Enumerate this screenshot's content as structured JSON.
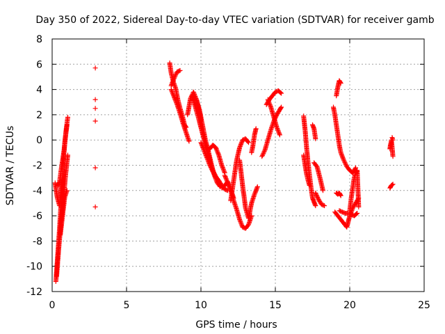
{
  "chart_data": {
    "type": "scatter",
    "title": "Day 350 of 2022, Sidereal Day-to-day VTEC variation (SDTVAR) for receiver gamb",
    "xlabel": "GPS time / hours",
    "ylabel": "SDTVAR / TECUs",
    "xlim": [
      0,
      25
    ],
    "ylim": [
      -12,
      8
    ],
    "xticks": [
      0,
      5,
      10,
      15,
      20,
      25
    ],
    "yticks": [
      -12,
      -10,
      -8,
      -6,
      -4,
      -2,
      0,
      2,
      4,
      6,
      8
    ],
    "grid": true,
    "marker": "+",
    "color": "#ff0000",
    "series": [
      {
        "name": "SDTVAR",
        "segments": [
          {
            "x": [
              0.25,
              0.35,
              0.45,
              0.55,
              0.65,
              0.75,
              0.85,
              0.95,
              1.05
            ],
            "y": [
              -11.2,
              -9.5,
              -7.8,
              -6.0,
              -3.8,
              -1.8,
              -0.2,
              0.9,
              1.8
            ]
          },
          {
            "x": [
              0.3,
              0.45,
              0.6,
              0.75,
              0.9,
              1.05
            ],
            "y": [
              -10.8,
              -8.5,
              -6.5,
              -4.8,
              -2.8,
              -1.2
            ]
          },
          {
            "x": [
              0.2,
              0.35,
              0.5,
              0.65
            ],
            "y": [
              -3.4,
              -4.6,
              -5.2,
              -3.2
            ]
          },
          {
            "x": [
              0.55,
              0.7,
              0.85,
              1.0
            ],
            "y": [
              -7.5,
              -6.0,
              -4.5,
              -4.0
            ]
          },
          {
            "x": [
              0.4,
              0.5,
              0.6,
              0.7,
              0.8,
              0.9,
              1.0
            ],
            "y": [
              -3.6,
              -3.3,
              -2.4,
              -1.6,
              -0.8,
              0.3,
              1.2
            ]
          },
          {
            "x": [
              2.9,
              2.9,
              2.9,
              2.9,
              2.9,
              2.9
            ],
            "y": [
              5.7,
              3.2,
              2.5,
              1.5,
              -2.2,
              -5.3
            ]
          },
          {
            "x": [
              7.9,
              8.0,
              8.15,
              8.3,
              8.45,
              8.6,
              8.75,
              8.9,
              9.0
            ],
            "y": [
              6.1,
              5.3,
              4.6,
              4.1,
              3.2,
              2.5,
              1.9,
              1.2,
              1.0
            ]
          },
          {
            "x": [
              8.0,
              8.2,
              8.4,
              8.6
            ],
            "y": [
              4.3,
              4.9,
              5.4,
              5.5
            ]
          },
          {
            "x": [
              8.0,
              8.2,
              8.4,
              8.6,
              8.8,
              9.0,
              9.2
            ],
            "y": [
              4.0,
              3.4,
              2.8,
              2.1,
              1.3,
              0.6,
              -0.1
            ]
          },
          {
            "x": [
              9.1,
              9.3,
              9.5,
              9.7,
              9.9,
              10.0
            ],
            "y": [
              2.0,
              3.3,
              3.8,
              3.2,
              2.2,
              1.5
            ]
          },
          {
            "x": [
              9.4,
              9.6,
              9.8,
              10.0,
              10.2,
              10.4,
              10.6,
              10.8,
              11.0,
              11.2,
              11.4,
              11.6,
              11.8
            ],
            "y": [
              3.5,
              2.7,
              1.9,
              1.0,
              0.1,
              -0.8,
              -1.7,
              -2.4,
              -2.9,
              -3.3,
              -3.6,
              -3.9,
              -4.0
            ]
          },
          {
            "x": [
              9.7,
              9.9,
              10.1,
              10.3,
              10.5,
              10.7,
              10.9,
              11.1,
              11.3
            ],
            "y": [
              3.2,
              2.4,
              1.2,
              0.0,
              -0.9,
              -1.9,
              -2.8,
              -3.4,
              -3.7
            ]
          },
          {
            "x": [
              10.6,
              10.8,
              11.0,
              11.2,
              11.4,
              11.6
            ],
            "y": [
              -0.7,
              -0.4,
              -0.6,
              -1.2,
              -2.0,
              -2.6
            ]
          },
          {
            "x": [
              10.0,
              10.2,
              10.4,
              10.6,
              10.8,
              11.0,
              11.2,
              11.4
            ],
            "y": [
              -0.2,
              -0.8,
              -1.4,
              -2.0,
              -2.5,
              -2.9,
              -3.2,
              -3.6
            ]
          },
          {
            "x": [
              11.6,
              11.8,
              12.0,
              12.2,
              12.4,
              12.6,
              12.8,
              13.0,
              13.2,
              13.4
            ],
            "y": [
              -2.8,
              -3.4,
              -4.0,
              -4.8,
              -5.5,
              -6.3,
              -6.9,
              -7.0,
              -6.7,
              -6.0
            ]
          },
          {
            "x": [
              11.4,
              11.6,
              11.8,
              12.0,
              12.2
            ],
            "y": [
              -3.8,
              -3.6,
              -3.3,
              -3.9,
              -4.6
            ]
          },
          {
            "x": [
              12.0,
              12.2,
              12.4,
              12.6,
              12.8,
              13.0,
              13.2
            ],
            "y": [
              -4.8,
              -3.2,
              -1.6,
              -0.6,
              0.0,
              0.1,
              -0.2
            ]
          },
          {
            "x": [
              12.6,
              12.8,
              13.0,
              13.2,
              13.4,
              13.6,
              13.8
            ],
            "y": [
              -1.6,
              -3.6,
              -5.4,
              -6.2,
              -5.0,
              -4.3,
              -3.7
            ]
          },
          {
            "x": [
              13.4,
              13.5,
              13.6,
              13.7
            ],
            "y": [
              -1.0,
              -0.4,
              0.4,
              0.9
            ]
          },
          {
            "x": [
              14.1,
              14.3,
              14.5,
              14.7,
              14.9,
              15.1,
              15.3,
              15.4
            ],
            "y": [
              -1.3,
              -0.8,
              0.0,
              0.8,
              1.5,
              2.0,
              2.4,
              2.6
            ]
          },
          {
            "x": [
              14.4,
              14.6,
              14.8,
              15.0,
              15.2,
              15.4
            ],
            "y": [
              2.8,
              3.2,
              3.5,
              3.8,
              3.9,
              3.7
            ]
          },
          {
            "x": [
              14.5,
              14.7,
              14.9,
              15.1,
              15.3
            ],
            "y": [
              3.2,
              2.6,
              1.8,
              1.0,
              0.4
            ]
          },
          {
            "x": [
              16.9,
              17.0,
              17.1,
              17.2,
              17.3,
              17.4,
              17.5,
              17.6,
              17.7
            ],
            "y": [
              1.9,
              0.8,
              -0.6,
              -1.8,
              -2.8,
              -3.8,
              -4.6,
              -4.9,
              -5.2
            ]
          },
          {
            "x": [
              16.9,
              17.0,
              17.1,
              17.2,
              17.3
            ],
            "y": [
              -1.2,
              -2.0,
              -2.7,
              -3.2,
              -3.6
            ]
          },
          {
            "x": [
              17.5,
              17.6,
              17.7
            ],
            "y": [
              1.2,
              0.9,
              0.1
            ]
          },
          {
            "x": [
              17.6,
              17.8,
              18.0,
              18.2
            ],
            "y": [
              -1.8,
              -2.1,
              -3.0,
              -4.0
            ]
          },
          {
            "x": [
              17.7,
              17.9,
              18.1,
              18.3
            ],
            "y": [
              -4.2,
              -4.7,
              -5.1,
              -5.2
            ]
          },
          {
            "x": [
              18.9,
              19.0,
              19.1,
              19.2,
              19.3,
              19.4,
              19.6,
              19.8,
              20.0,
              20.2,
              20.4
            ],
            "y": [
              2.6,
              2.0,
              1.2,
              0.4,
              -0.4,
              -1.0,
              -1.6,
              -2.1,
              -2.4,
              -2.6,
              -2.2
            ]
          },
          {
            "x": [
              19.1,
              19.2,
              19.3,
              19.4
            ],
            "y": [
              3.5,
              4.2,
              4.7,
              4.5
            ]
          },
          {
            "x": [
              19.1,
              19.2,
              19.3,
              19.4
            ],
            "y": [
              -4.2,
              -4.3,
              -4.2,
              -4.4
            ]
          },
          {
            "x": [
              19.0,
              19.2,
              19.4,
              19.6,
              19.8,
              20.0,
              20.2,
              20.4,
              20.6
            ],
            "y": [
              -5.7,
              -6.0,
              -6.3,
              -6.6,
              -6.9,
              -6.0,
              -5.4,
              -5.0,
              -4.6
            ]
          },
          {
            "x": [
              19.3,
              19.5,
              19.7,
              19.9
            ],
            "y": [
              -5.6,
              -5.7,
              -5.8,
              -5.8
            ]
          },
          {
            "x": [
              20.0,
              20.1,
              20.2,
              20.3,
              20.4,
              20.5,
              20.6
            ],
            "y": [
              -5.6,
              -4.6,
              -3.8,
              -3.0,
              -2.6,
              -2.4,
              -5.3
            ]
          },
          {
            "x": [
              20.1,
              20.3,
              20.5
            ],
            "y": [
              -5.9,
              -6.0,
              -5.8
            ]
          },
          {
            "x": [
              22.7,
              22.75,
              22.8,
              22.85,
              22.9
            ],
            "y": [
              -0.7,
              -0.3,
              0.0,
              -0.6,
              -1.3
            ]
          },
          {
            "x": [
              22.85,
              22.9
            ],
            "y": [
              0.2,
              0.0
            ]
          },
          {
            "x": [
              22.7,
              22.8,
              22.9
            ],
            "y": [
              -3.8,
              -3.6,
              -3.5
            ]
          }
        ]
      }
    ]
  }
}
